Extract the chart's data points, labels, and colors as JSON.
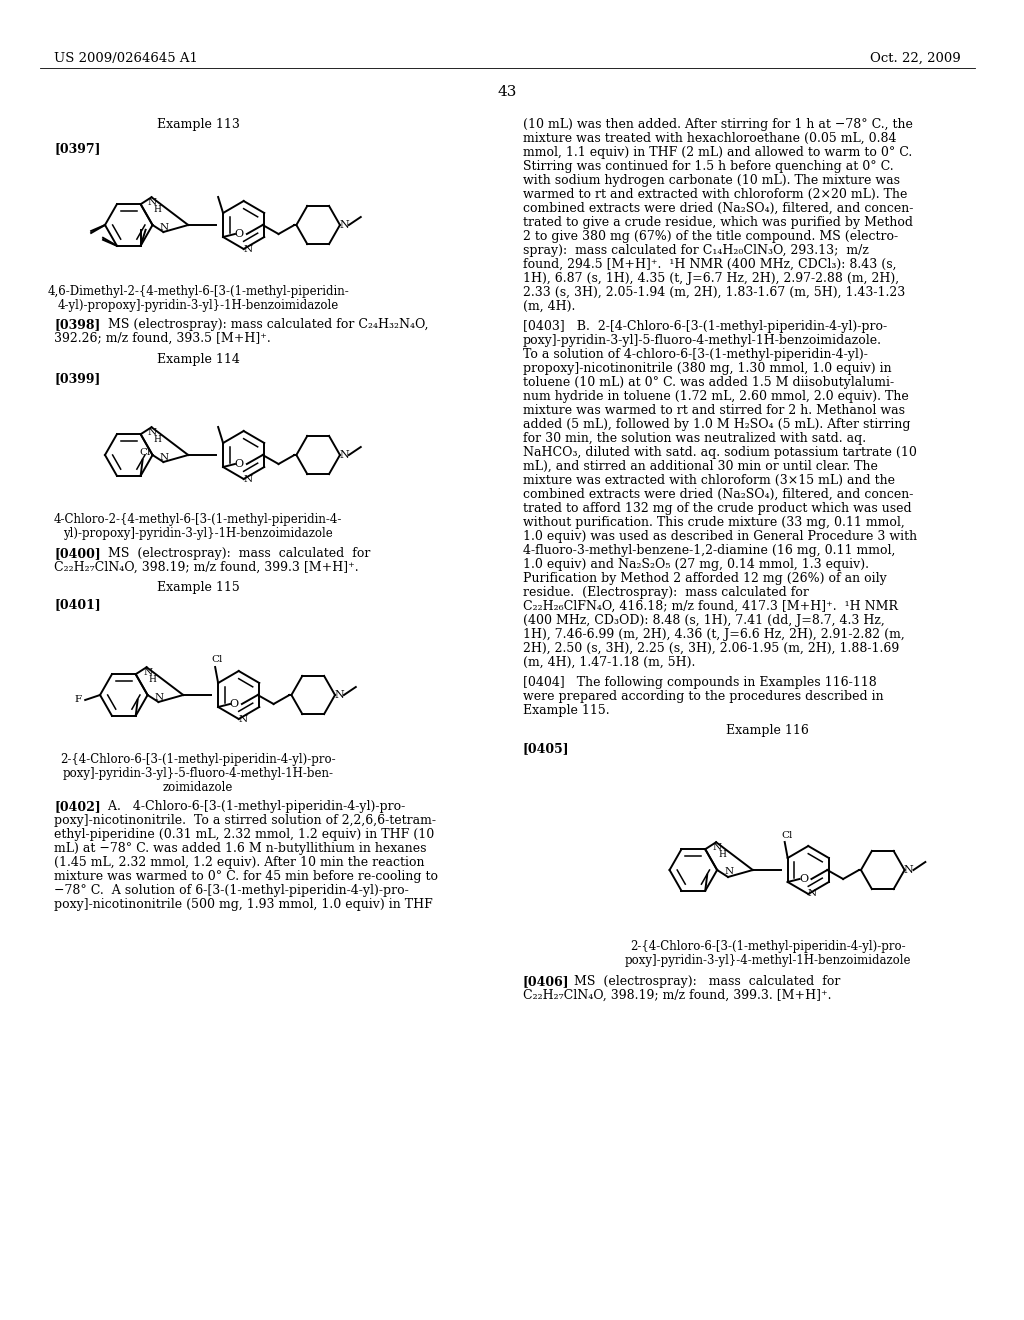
{
  "bg_color": "#ffffff",
  "header_left": "US 2009/0264645 A1",
  "header_right": "Oct. 22, 2009",
  "page_number": "43"
}
